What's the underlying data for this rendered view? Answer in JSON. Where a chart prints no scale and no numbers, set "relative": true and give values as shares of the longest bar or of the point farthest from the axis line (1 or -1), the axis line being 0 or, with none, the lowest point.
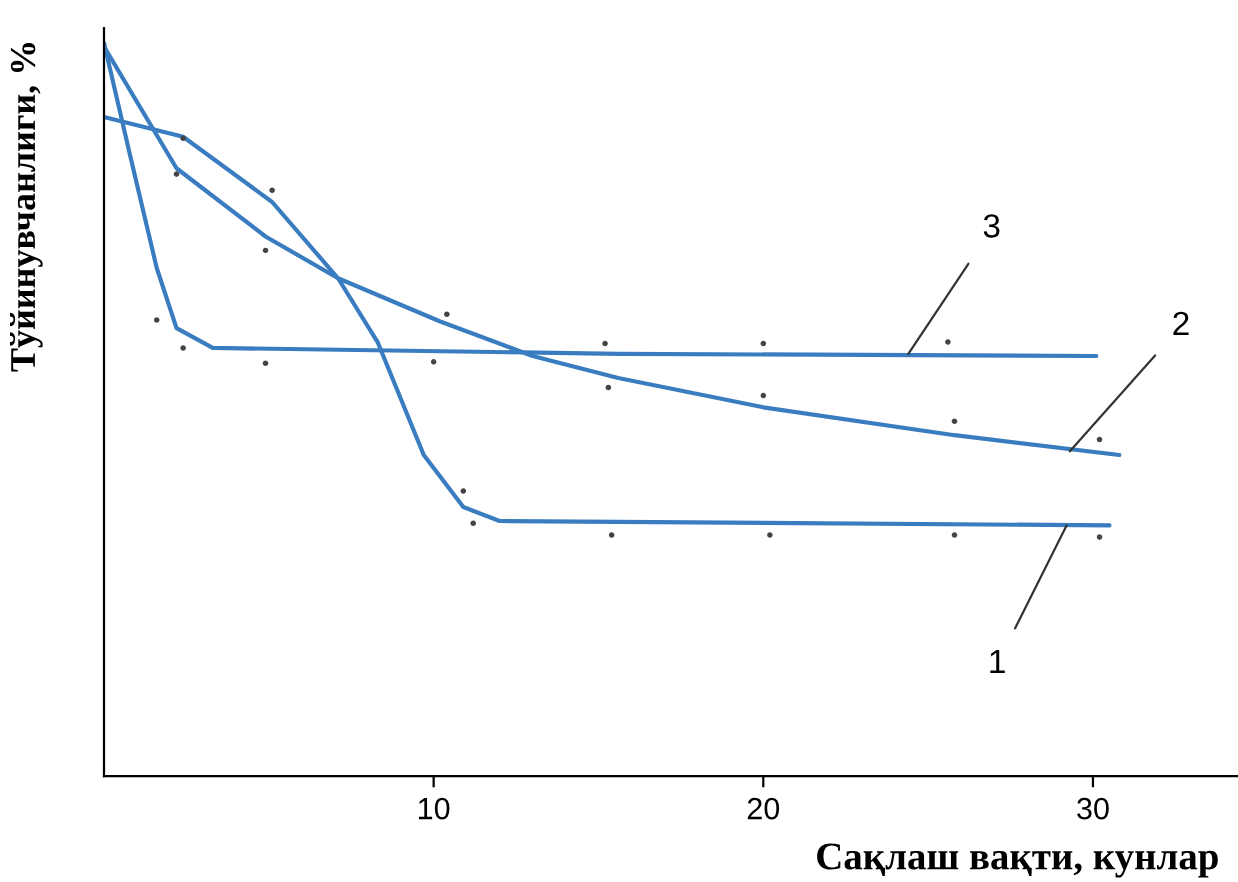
{
  "chart_data": {
    "type": "line",
    "relative": true,
    "xlabel": "Сақлаш вақти, кунлар",
    "ylabel": "Тўйинувчанлиги, %",
    "xlim": [
      0,
      34.4
    ],
    "xticks": [
      10,
      20,
      30
    ],
    "grid": false,
    "marker": "none",
    "line_style": "solid",
    "series": [
      {
        "color": "#3a7cc0",
        "x": [
          0,
          2.4,
          5.1,
          7.1,
          8.3,
          9.7,
          10.9,
          12,
          30.5
        ],
        "values": [
          0.899,
          0.872,
          0.783,
          0.679,
          0.592,
          0.438,
          0.367,
          0.348,
          0.342
        ]
      },
      {
        "color": "#3a7cc0",
        "x": [
          0,
          2.2,
          4.9,
          7.1,
          10.2,
          13,
          15.6,
          20,
          25.8,
          30.8
        ],
        "values": [
          0.995,
          0.829,
          0.736,
          0.679,
          0.62,
          0.573,
          0.543,
          0.503,
          0.465,
          0.438
        ]
      },
      {
        "color": "#3a7cc0",
        "x": [
          0,
          0.8,
          1.6,
          2.2,
          3.3,
          15.6,
          30.1
        ],
        "values": [
          1.0,
          0.845,
          0.693,
          0.611,
          0.584,
          0.576,
          0.573
        ]
      },
      {
        "type": "scatter",
        "color": "#444444",
        "x": [
          1.6,
          2.4,
          2.2,
          2.4,
          4.9,
          5.1,
          4.9,
          10,
          10.4,
          10.9,
          11.2,
          15.2,
          15.3,
          15.4,
          20,
          20,
          20.2,
          25.6,
          25.8,
          25.8,
          30.2,
          30.2
        ],
        "values": [
          0.622,
          0.584,
          0.821,
          0.87,
          0.717,
          0.799,
          0.563,
          0.565,
          0.63,
          0.389,
          0.345,
          0.59,
          0.53,
          0.329,
          0.59,
          0.519,
          0.329,
          0.592,
          0.484,
          0.329,
          0.459,
          0.326
        ]
      }
    ],
    "annotations": [
      {
        "text": "3",
        "x": 24.4,
        "y": 0.576
      },
      {
        "text": "2",
        "x": 29.3,
        "y": 0.443
      },
      {
        "text": "1",
        "x": 29.2,
        "y": 0.342
      }
    ]
  }
}
